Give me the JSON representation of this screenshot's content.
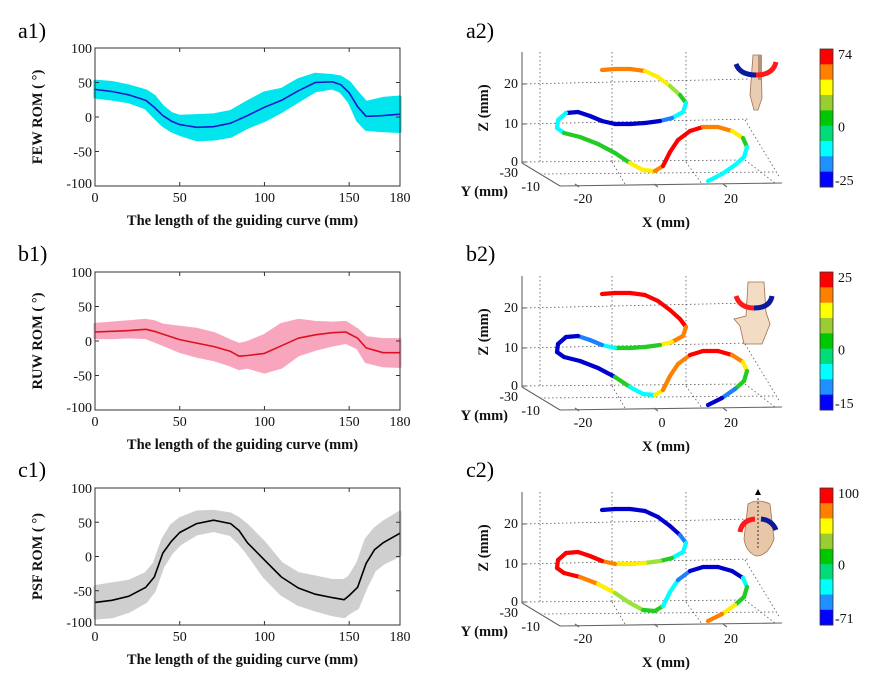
{
  "figure": {
    "panels_left": [
      "a1)",
      "b1)",
      "c1)"
    ],
    "panels_right": [
      "a2)",
      "b2)",
      "c2)"
    ]
  },
  "chart_data": [
    {
      "id": "a1",
      "type": "line",
      "panel_label": "a1)",
      "xlabel": "The length of the guiding curve (mm)",
      "ylabel": "FEW ROM ( °)",
      "xlim": [
        0,
        180
      ],
      "ylim": [
        -100,
        100
      ],
      "xticks": [
        0,
        50,
        100,
        150,
        180
      ],
      "yticks": [
        -100,
        -50,
        0,
        50,
        100
      ],
      "line_color": "#1a1acc",
      "band_color": "#00e5ee",
      "x": [
        0,
        10,
        20,
        30,
        35,
        40,
        45,
        50,
        60,
        70,
        80,
        90,
        100,
        110,
        120,
        130,
        140,
        145,
        150,
        155,
        160,
        170,
        180
      ],
      "mean": [
        40,
        37,
        32,
        24,
        14,
        2,
        -6,
        -11,
        -15,
        -14,
        -9,
        2,
        14,
        24,
        38,
        50,
        51,
        47,
        35,
        15,
        1,
        2,
        4
      ],
      "upper": [
        52,
        50,
        45,
        38,
        30,
        15,
        5,
        1,
        2,
        3,
        8,
        22,
        35,
        40,
        54,
        62,
        60,
        58,
        50,
        35,
        21,
        27,
        29
      ],
      "lower": [
        29,
        26,
        22,
        13,
        0,
        -12,
        -20,
        -25,
        -33,
        -32,
        -28,
        -15,
        -5,
        8,
        23,
        38,
        42,
        37,
        22,
        -5,
        -18,
        -20,
        -21
      ]
    },
    {
      "id": "b1",
      "type": "line",
      "panel_label": "b1)",
      "xlabel": "The length of the guiding curve (mm)",
      "ylabel": "RUW ROM ( °)",
      "xlim": [
        0,
        180
      ],
      "ylim": [
        -100,
        100
      ],
      "xticks": [
        0,
        50,
        100,
        150,
        180
      ],
      "yticks": [
        -100,
        -50,
        0,
        50,
        100
      ],
      "line_color": "#dd1122",
      "band_color": "#f7a6bd",
      "x": [
        0,
        10,
        20,
        30,
        35,
        40,
        50,
        60,
        70,
        80,
        85,
        90,
        100,
        110,
        120,
        130,
        140,
        148,
        155,
        160,
        170,
        180
      ],
      "mean": [
        13,
        14,
        15,
        17,
        14,
        10,
        2,
        -3,
        -8,
        -15,
        -22,
        -21,
        -18,
        -7,
        4,
        9,
        12,
        13,
        4,
        -10,
        -17,
        -17
      ],
      "upper": [
        24,
        26,
        28,
        30,
        28,
        23,
        20,
        17,
        11,
        0,
        -5,
        -2,
        8,
        24,
        30,
        27,
        26,
        27,
        16,
        5,
        2,
        2
      ],
      "lower": [
        5,
        5,
        6,
        5,
        0,
        -5,
        -15,
        -22,
        -27,
        -35,
        -40,
        -38,
        -45,
        -38,
        -20,
        -12,
        -6,
        -2,
        -10,
        -30,
        -36,
        -37
      ]
    },
    {
      "id": "c1",
      "type": "line",
      "panel_label": "c1)",
      "xlabel": "The length of the guiding curve (mm)",
      "ylabel": "PSF ROM ( °)",
      "xlim": [
        0,
        180
      ],
      "ylim": [
        -100,
        100
      ],
      "xticks": [
        0,
        50,
        100,
        150,
        180
      ],
      "yticks": [
        -100,
        -50,
        0,
        50,
        100
      ],
      "line_color": "#000000",
      "band_color": "#cfcfcf",
      "x": [
        0,
        10,
        20,
        30,
        35,
        40,
        45,
        50,
        60,
        70,
        80,
        85,
        90,
        100,
        110,
        120,
        130,
        140,
        147,
        150,
        155,
        160,
        165,
        170,
        180
      ],
      "mean": [
        -67,
        -64,
        -58,
        -45,
        -30,
        5,
        22,
        35,
        48,
        53,
        48,
        38,
        20,
        -5,
        -30,
        -46,
        -55,
        -60,
        -63,
        -57,
        -45,
        -10,
        10,
        20,
        34
      ],
      "upper": [
        -44,
        -40,
        -36,
        -25,
        -10,
        25,
        45,
        55,
        65,
        66,
        62,
        55,
        45,
        20,
        -10,
        -25,
        -30,
        -35,
        -35,
        -30,
        -10,
        25,
        40,
        50,
        65
      ],
      "lower": [
        -90,
        -88,
        -80,
        -66,
        -50,
        -15,
        5,
        18,
        33,
        38,
        32,
        20,
        5,
        -30,
        -55,
        -70,
        -78,
        -85,
        -88,
        -82,
        -75,
        -45,
        -20,
        -10,
        2
      ]
    },
    {
      "id": "a2",
      "type": "scatter",
      "subtype": "3d-colored-curve",
      "panel_label": "a2)",
      "xlabel": "X (mm)",
      "ylabel": "Y (mm)",
      "zlabel": "Z (mm)",
      "xticks": [
        -20,
        0,
        20
      ],
      "yticks": [
        -30,
        -10
      ],
      "zticks": [
        0,
        10,
        20
      ],
      "colorbar": {
        "min": -25,
        "max": 74,
        "labels": [
          "74",
          "0",
          "-25"
        ]
      },
      "inset_icon": "forearm-flexion-extension-icon",
      "segment_values_along_curve": [
        "orange",
        "orange",
        "yellow",
        "yellowgreen",
        "green",
        "cyan",
        "midblue",
        "blue",
        "blue",
        "blue",
        "blue",
        "blue",
        "cyan",
        "cyan",
        "green",
        "green",
        "green",
        "yellow",
        "orange",
        "red",
        "red",
        "red",
        "orange",
        "yellow",
        "green",
        "cyan",
        "cyan",
        "cyan"
      ]
    },
    {
      "id": "b2",
      "type": "scatter",
      "subtype": "3d-colored-curve",
      "panel_label": "b2)",
      "xlabel": "X (mm)",
      "ylabel": "Y (mm)",
      "zlabel": "Z (mm)",
      "xticks": [
        -20,
        0,
        20
      ],
      "yticks": [
        -30,
        -10
      ],
      "zticks": [
        0,
        10,
        20
      ],
      "colorbar": {
        "min": -15,
        "max": 25,
        "labels": [
          "25",
          "0",
          "-15"
        ]
      },
      "inset_icon": "wrist-radial-ulnar-deviation-icon",
      "segment_values_along_curve": [
        "red",
        "red",
        "red",
        "red",
        "red",
        "orange",
        "yellow",
        "green",
        "green",
        "cyan",
        "midblue",
        "blue",
        "blue",
        "blue",
        "blue",
        "blue",
        "green",
        "cyan",
        "yellow",
        "orange",
        "orange",
        "red",
        "red",
        "orange",
        "yellow",
        "green",
        "midblue",
        "blue"
      ]
    },
    {
      "id": "c2",
      "type": "scatter",
      "subtype": "3d-colored-curve",
      "panel_label": "c2)",
      "xlabel": "X (mm)",
      "ylabel": "Y (mm)",
      "zlabel": "Z (mm)",
      "xticks": [
        -20,
        0,
        20
      ],
      "yticks": [
        -30,
        -10
      ],
      "zticks": [
        0,
        10,
        20
      ],
      "colorbar": {
        "min": -71,
        "max": 100,
        "labels": [
          "100",
          "0",
          "-71"
        ]
      },
      "inset_icon": "forearm-pronation-supination-icon",
      "segment_values_along_curve": [
        "blue",
        "blue",
        "blue",
        "blue",
        "midblue",
        "cyan",
        "green",
        "yellowgreen",
        "yellow",
        "orange",
        "red",
        "red",
        "red",
        "red",
        "red",
        "orange",
        "yellow",
        "yellowgreen",
        "green",
        "green",
        "cyan",
        "midblue",
        "blue",
        "blue",
        "blue",
        "cyan",
        "green",
        "yellow",
        "orange"
      ]
    }
  ],
  "colorbar_bands": [
    "#ff0000",
    "#ff8000",
    "#ffff00",
    "#9acd32",
    "#00c800",
    "#00dc78",
    "#00ffff",
    "#1e90ff",
    "#0000ff"
  ],
  "segment_colors": {
    "red": "#ff0000",
    "orange": "#ff8000",
    "yellow": "#ffee00",
    "yellowgreen": "#9be33a",
    "green": "#22cc22",
    "cyan": "#00ffff",
    "midblue": "#1e7fff",
    "blue": "#0000cc"
  }
}
